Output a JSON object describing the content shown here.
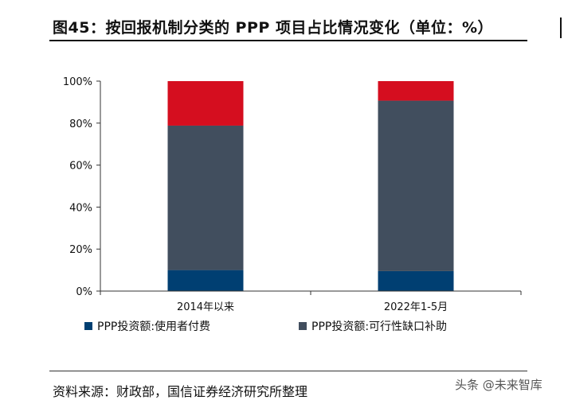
{
  "title": "图45：按回报机制分类的 PPP 项目占比情况变化（单位：%）",
  "source": "资料来源：财政部，国信证券经济研究所整理",
  "watermark": "头条 @未来智库",
  "chart_data": {
    "type": "bar",
    "stacked": true,
    "categories": [
      "2014年以来",
      "2022年1-5月"
    ],
    "series": [
      {
        "name": "PPP投资额:使用者付费",
        "color": "#003f72",
        "values": [
          10,
          9.5
        ]
      },
      {
        "name": "PPP投资额:可行性缺口补助",
        "color": "#414e5e",
        "values": [
          68.8,
          81.2
        ]
      },
      {
        "name": "",
        "color": "#d50e1f",
        "values": [
          21.2,
          9.3
        ]
      }
    ],
    "ylim": [
      0,
      100
    ],
    "yticks": [
      0,
      20,
      40,
      60,
      80,
      100
    ],
    "ytick_labels": [
      "0%",
      "20%",
      "40%",
      "60%",
      "80%",
      "100%"
    ],
    "grid": false,
    "legend": "bottom"
  }
}
